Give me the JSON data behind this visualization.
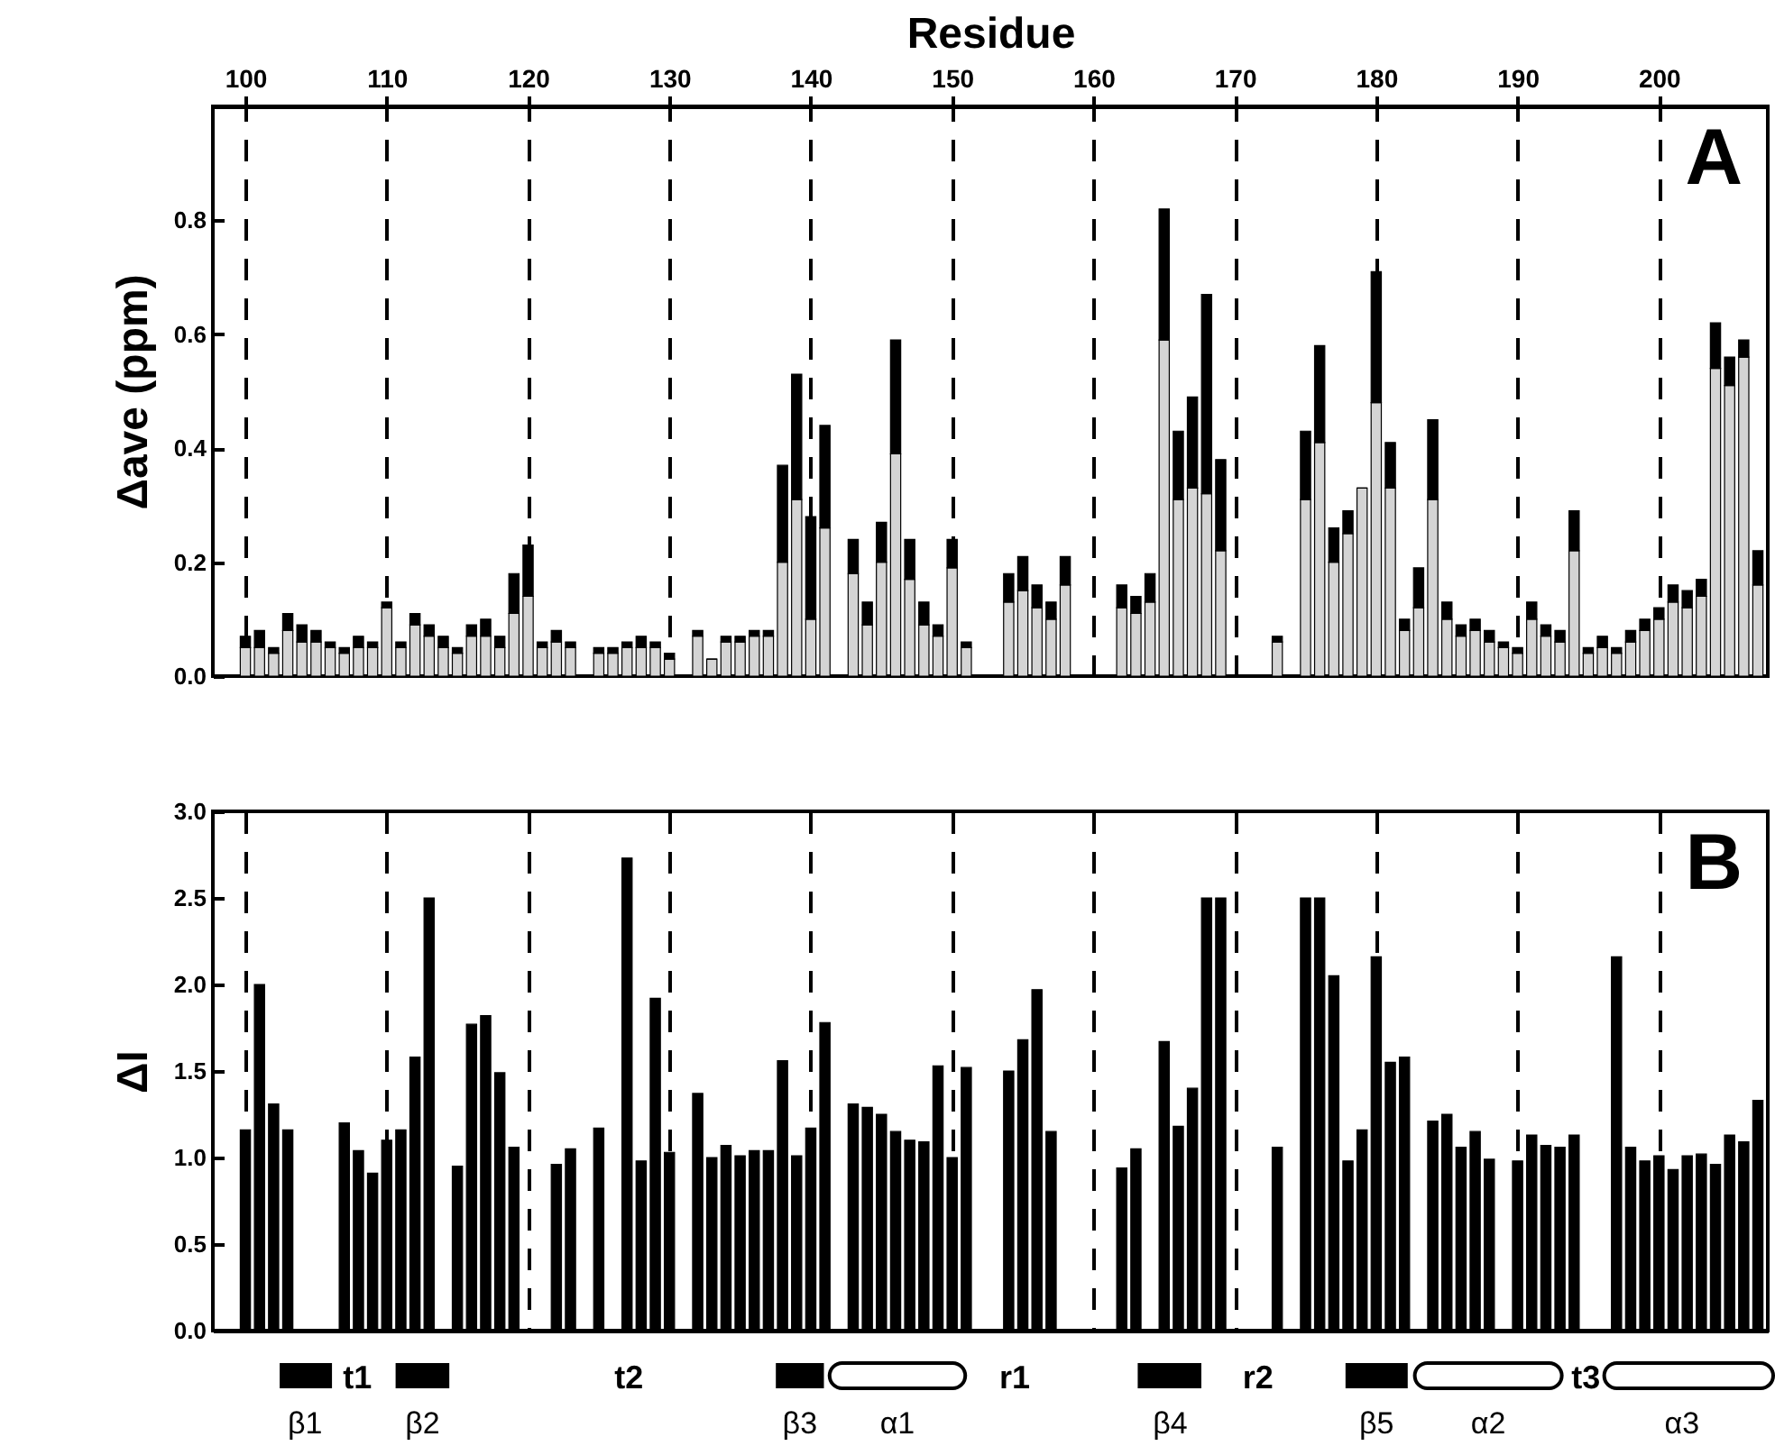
{
  "chart_data": [
    {
      "type": "bar",
      "stacked": true,
      "xlabel": "Residue",
      "ylabel": "Δave (ppm)",
      "grid": "x",
      "xlim": [
        97.7,
        207.7
      ],
      "xticks": [
        100,
        110,
        120,
        130,
        140,
        150,
        160,
        170,
        180,
        190,
        200
      ],
      "ylim": [
        0,
        1.0
      ],
      "yticks": [
        {
          "value": 0,
          "label": "0.0"
        },
        {
          "value": 0.2,
          "label": "0.2"
        },
        {
          "value": 0.4,
          "label": "0.4"
        },
        {
          "value": 0.6,
          "label": "0.6"
        },
        {
          "value": 0.8,
          "label": "0.8"
        }
      ],
      "x": [
        100,
        101,
        102,
        103,
        104,
        105,
        106,
        107,
        108,
        109,
        110,
        111,
        112,
        113,
        114,
        115,
        116,
        117,
        118,
        119,
        120,
        121,
        122,
        123,
        125,
        126,
        127,
        128,
        129,
        130,
        132,
        133,
        134,
        135,
        136,
        137,
        138,
        139,
        140,
        141,
        143,
        144,
        145,
        146,
        147,
        148,
        149,
        150,
        151,
        154,
        155,
        156,
        157,
        158,
        162,
        163,
        164,
        165,
        166,
        167,
        168,
        169,
        173,
        175,
        176,
        177,
        178,
        179,
        180,
        181,
        182,
        183,
        184,
        185,
        186,
        187,
        188,
        189,
        190,
        191,
        192,
        193,
        194,
        195,
        196,
        197,
        198,
        199,
        200,
        201,
        202,
        203,
        204,
        205,
        206,
        207
      ],
      "series": [
        {
          "color": "#d4d4d4",
          "values": [
            0.05,
            0.05,
            0.04,
            0.08,
            0.06,
            0.06,
            0.05,
            0.04,
            0.05,
            0.05,
            0.12,
            0.05,
            0.09,
            0.07,
            0.05,
            0.04,
            0.07,
            0.07,
            0.05,
            0.11,
            0.14,
            0.05,
            0.06,
            0.05,
            0.04,
            0.04,
            0.05,
            0.05,
            0.05,
            0.03,
            0.07,
            0.03,
            0.06,
            0.06,
            0.07,
            0.07,
            0.2,
            0.31,
            0.1,
            0.26,
            0.18,
            0.09,
            0.2,
            0.39,
            0.17,
            0.09,
            0.07,
            0.19,
            0.05,
            0.13,
            0.15,
            0.12,
            0.1,
            0.16,
            0.12,
            0.11,
            0.13,
            0.59,
            0.31,
            0.33,
            0.32,
            0.22,
            0.06,
            0.31,
            0.41,
            0.2,
            0.25,
            0.33,
            0.48,
            0.33,
            0.08,
            0.12,
            0.31,
            0.1,
            0.07,
            0.08,
            0.06,
            0.05,
            0.04,
            0.1,
            0.07,
            0.06,
            0.22,
            0.04,
            0.05,
            0.04,
            0.06,
            0.08,
            0.1,
            0.13,
            0.12,
            0.14,
            0.54,
            0.51,
            0.56,
            0.16
          ]
        },
        {
          "color": "#000000",
          "values": [
            0.02,
            0.03,
            0.01,
            0.03,
            0.03,
            0.02,
            0.01,
            0.01,
            0.02,
            0.01,
            0.01,
            0.01,
            0.02,
            0.02,
            0.02,
            0.01,
            0.02,
            0.03,
            0.02,
            0.07,
            0.09,
            0.01,
            0.02,
            0.01,
            0.01,
            0.01,
            0.01,
            0.02,
            0.01,
            0.01,
            0.01,
            0,
            0.01,
            0.01,
            0.01,
            0.01,
            0.17,
            0.22,
            0.18,
            0.18,
            0.06,
            0.04,
            0.07,
            0.2,
            0.07,
            0.04,
            0.02,
            0.05,
            0.01,
            0.05,
            0.06,
            0.04,
            0.03,
            0.05,
            0.04,
            0.03,
            0.05,
            0.23,
            0.12,
            0.16,
            0.35,
            0.16,
            0.01,
            0.12,
            0.17,
            0.06,
            0.04,
            0,
            0.23,
            0.08,
            0.02,
            0.07,
            0.14,
            0.03,
            0.02,
            0.02,
            0.02,
            0.01,
            0.01,
            0.03,
            0.02,
            0.02,
            0.07,
            0.01,
            0.02,
            0.01,
            0.02,
            0.02,
            0.02,
            0.03,
            0.03,
            0.03,
            0.08,
            0.05,
            0.03,
            0.06
          ]
        }
      ],
      "annotations": [
        "A"
      ]
    },
    {
      "type": "bar",
      "ylabel": "ΔI",
      "grid": "x",
      "tick_labels": "y",
      "xlim": [
        97.7,
        207.7
      ],
      "xticks": [
        {
          "value": 100,
          "label": null
        },
        {
          "value": 110,
          "label": null
        },
        {
          "value": 120,
          "label": null
        },
        {
          "value": 130,
          "label": null
        },
        {
          "value": 140,
          "label": null
        },
        {
          "value": 150,
          "label": null
        },
        {
          "value": 160,
          "label": null
        },
        {
          "value": 170,
          "label": null
        },
        {
          "value": 180,
          "label": null
        },
        {
          "value": 190,
          "label": null
        },
        {
          "value": 200,
          "label": null
        }
      ],
      "ylim": [
        0,
        3.0
      ],
      "yticks": [
        {
          "value": 0,
          "label": "0.0"
        },
        {
          "value": 0.5,
          "label": "0.5"
        },
        {
          "value": 1,
          "label": "1.0"
        },
        {
          "value": 1.5,
          "label": "1.5"
        },
        {
          "value": 2,
          "label": "2.0"
        },
        {
          "value": 2.5,
          "label": "2.5"
        },
        {
          "value": 3,
          "label": "3.0"
        }
      ],
      "x": [
        100,
        101,
        102,
        103,
        107,
        108,
        109,
        110,
        111,
        112,
        113,
        115,
        116,
        117,
        118,
        119,
        122,
        123,
        125,
        127,
        128,
        129,
        130,
        132,
        133,
        134,
        135,
        136,
        137,
        138,
        139,
        140,
        141,
        143,
        144,
        145,
        146,
        147,
        148,
        149,
        150,
        151,
        154,
        155,
        156,
        157,
        162,
        163,
        165,
        166,
        167,
        168,
        169,
        173,
        175,
        176,
        177,
        178,
        179,
        180,
        181,
        182,
        184,
        185,
        186,
        187,
        188,
        190,
        191,
        192,
        193,
        194,
        197,
        198,
        199,
        200,
        201,
        202,
        203,
        204,
        205,
        206,
        207
      ],
      "series": [
        {
          "color": "#000000",
          "values": [
            1.16,
            2.0,
            1.31,
            1.16,
            1.2,
            1.04,
            0.91,
            1.1,
            1.16,
            1.58,
            2.5,
            0.95,
            1.77,
            1.82,
            1.49,
            1.06,
            0.96,
            1.05,
            1.17,
            2.73,
            0.98,
            1.92,
            1.03,
            1.37,
            1.0,
            1.07,
            1.01,
            1.04,
            1.04,
            1.56,
            1.01,
            1.17,
            1.78,
            1.31,
            1.29,
            1.25,
            1.15,
            1.1,
            1.09,
            1.53,
            1.0,
            1.52,
            1.5,
            1.68,
            1.97,
            1.15,
            0.94,
            1.05,
            1.67,
            1.18,
            1.4,
            2.5,
            2.5,
            1.06,
            2.5,
            2.5,
            2.05,
            0.98,
            1.16,
            2.16,
            1.55,
            1.58,
            1.21,
            1.25,
            1.06,
            1.15,
            0.99,
            0.98,
            1.13,
            1.07,
            1.06,
            1.13,
            2.16,
            1.06,
            0.98,
            1.01,
            0.93,
            1.01,
            1.02,
            0.96,
            1.13,
            1.09,
            1.33
          ]
        }
      ],
      "annotations": [
        "B",
        "β1",
        "t1",
        "β2",
        "t2",
        "β3",
        "α1",
        "r1",
        "β4",
        "r2",
        "β5",
        "α2",
        "t3",
        "α3"
      ]
    }
  ]
}
